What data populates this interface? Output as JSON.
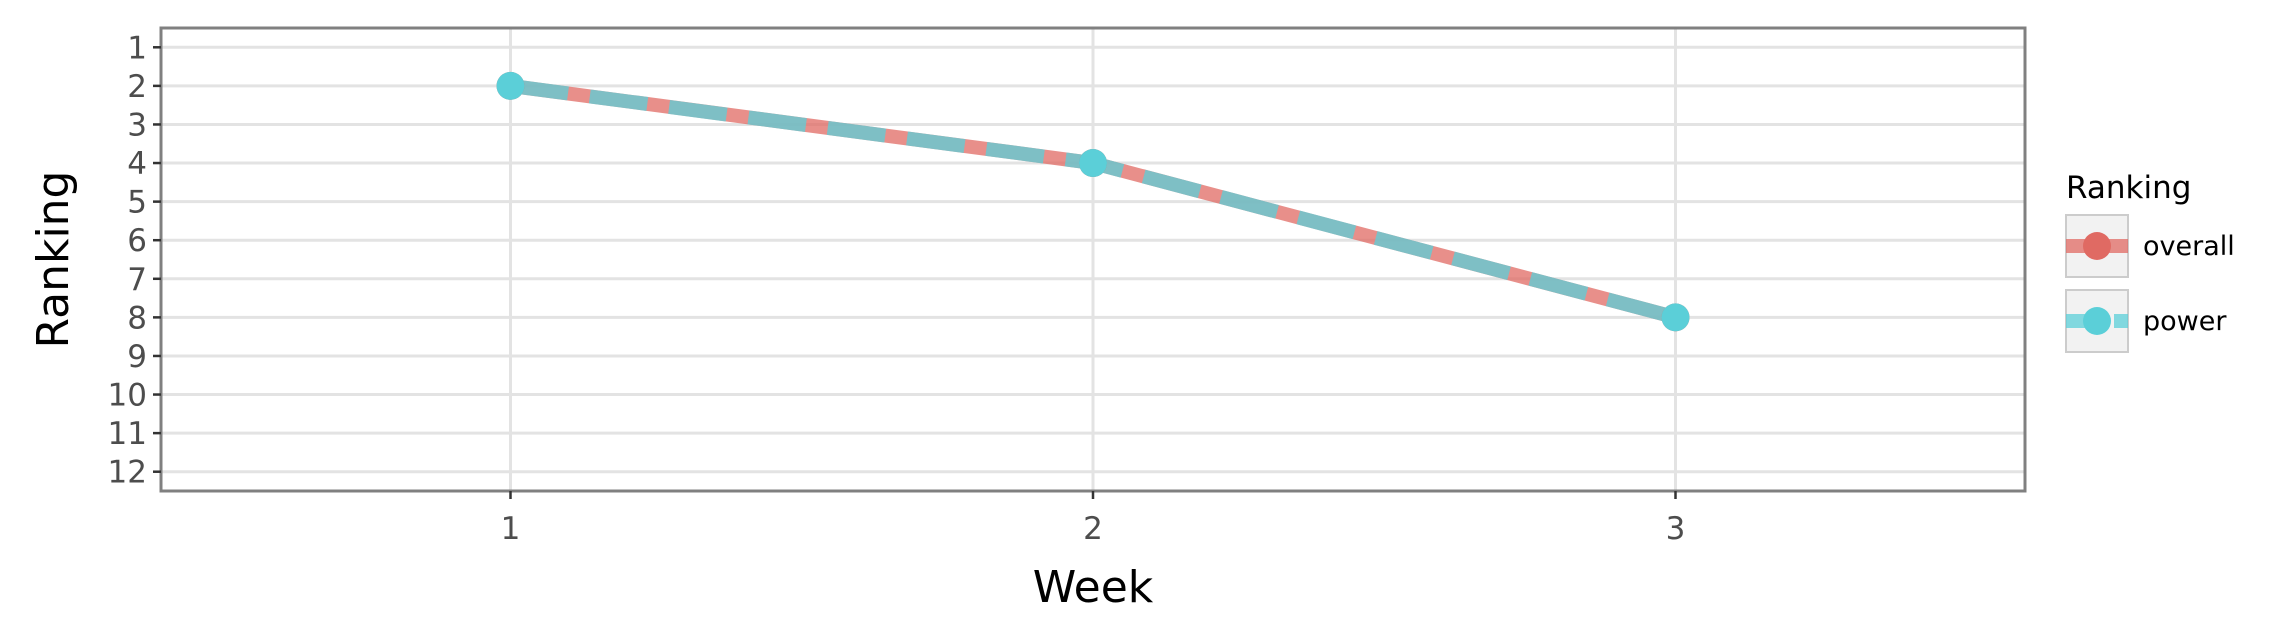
{
  "chart_data": {
    "type": "line",
    "xlabel": "Week",
    "ylabel": "Ranking",
    "x": [
      1,
      2,
      3
    ],
    "x_ticks": [
      "1",
      "2",
      "3"
    ],
    "xlim": [
      0.4,
      3.6
    ],
    "y_ticks": [
      "1",
      "2",
      "3",
      "4",
      "5",
      "6",
      "7",
      "8",
      "9",
      "10",
      "11",
      "12"
    ],
    "ylim": [
      12.5,
      0.5
    ],
    "y_reversed": true,
    "grid": true,
    "legend": {
      "title": "Ranking",
      "position": "right"
    },
    "series": [
      {
        "name": "overall",
        "values": [
          2,
          4,
          8
        ],
        "color": "#e06a63",
        "line_style": "solid"
      },
      {
        "name": "power",
        "values": [
          2,
          4,
          8
        ],
        "color": "#5bcfd8",
        "line_style": "dashed"
      }
    ]
  }
}
